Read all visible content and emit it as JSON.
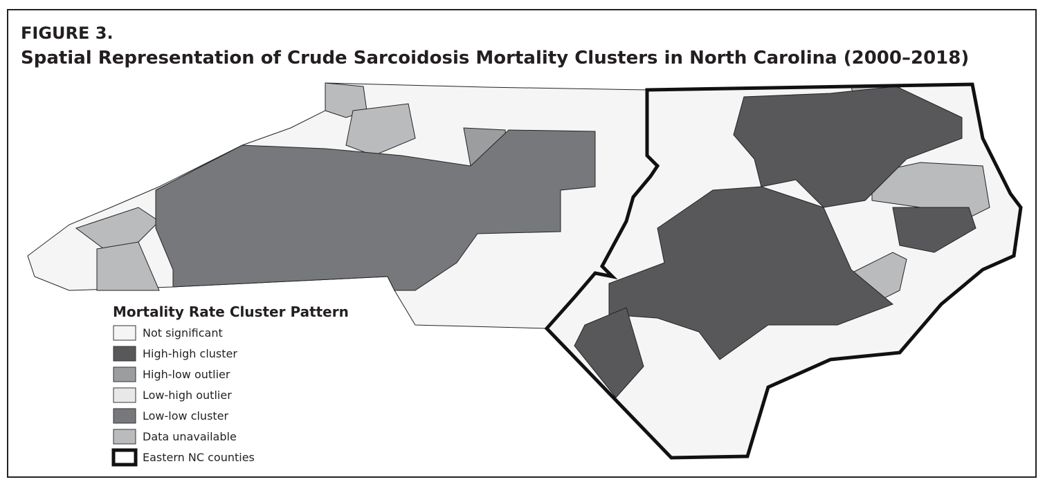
{
  "figure": {
    "label": "FIGURE 3.",
    "title": "Spatial Representation of Crude Sarcoidosis Mortality Clusters in North Carolina (2000–2018)"
  },
  "legend": {
    "title": "Mortality Rate Cluster Pattern",
    "items": [
      {
        "label": "Not significant",
        "color": "#f4f5f4"
      },
      {
        "label": "High-high cluster",
        "color": "#58585a"
      },
      {
        "label": "High-low outlier",
        "color": "#9c9d9f"
      },
      {
        "label": "Low-high outlier",
        "color": "#e8e8e8"
      },
      {
        "label": "Low-low cluster",
        "color": "#77787b"
      },
      {
        "label": "Data unavailable",
        "color": "#babbbd"
      },
      {
        "label": "Eastern NC counties",
        "color": "#ffffff"
      }
    ]
  }
}
